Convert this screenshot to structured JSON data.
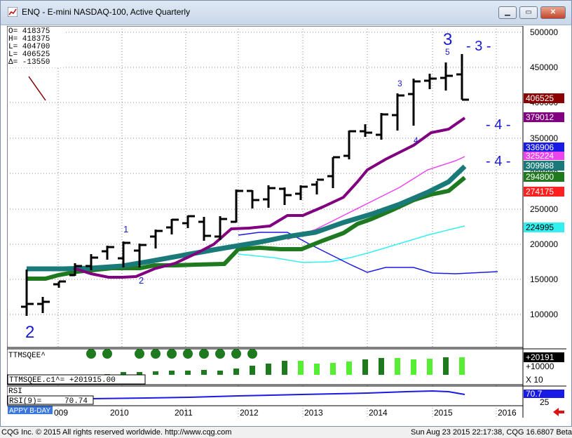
{
  "window": {
    "title": "ENQ - E-mini NASDAQ-100, Active Quarterly",
    "controls": {
      "minimize": "▁",
      "maximize": "▭",
      "close": "✕"
    }
  },
  "ohlc_box": {
    "lines": [
      "O=  418375",
      "H=  418375",
      "L=  404700",
      "L=  406525",
      "Δ=  -13550"
    ]
  },
  "price_axis": {
    "ticks": [
      "500000",
      "450000",
      "400000",
      "350000",
      "300000",
      "250000",
      "200000",
      "150000",
      "100000"
    ]
  },
  "price_labels": [
    {
      "text": "406525",
      "color": "#8b0000"
    },
    {
      "text": "379012",
      "color": "#800080"
    },
    {
      "text": "336906",
      "color": "#1a1ae6"
    },
    {
      "text": "325224",
      "color": "#ee44ee"
    },
    {
      "text": "309988",
      "color": "#1a7a7a"
    },
    {
      "text": "294800",
      "color": "#1f7a1f"
    },
    {
      "text": "274175",
      "color": "#ff2020"
    },
    {
      "text": "224995",
      "color": "#33f0f0"
    }
  ],
  "wave_labels": {
    "large_2": "2",
    "large_3": "3",
    "small_5": "5",
    "small_3": "3",
    "small_4": "4",
    "small_1": "1",
    "small_2": "2",
    "right_3": "- 3 -",
    "right_4a": "- 4 -",
    "right_4b": "- 4 -"
  },
  "time_axis": {
    "labels": [
      "009",
      "2010",
      "2011",
      "2012",
      "2013",
      "2014",
      "2015",
      "2016"
    ]
  },
  "squeeze_panel": {
    "name": "TTMSQEE^",
    "readout": "TTMSQEE.c1^= +201915.00",
    "axis_value": "+20191",
    "axis_scale": "+10000",
    "x_label": "X 10"
  },
  "rsi_panel": {
    "name": "RSI",
    "readout_label": "RSI(9)=",
    "readout_value": "70.74",
    "axis_value": "70.7",
    "axis_low": "25",
    "badge": "APPY B-DAY"
  },
  "status_bar": {
    "left": "CQG Inc. © 2015 All rights reserved worldwide. http://www.cqg.com",
    "right": "Sun Aug 23 2015 22:17:38, CQG 16.6807 Beta"
  },
  "colors": {
    "price_bars": "#000000",
    "ma_purple": "#800080",
    "ma_magenta": "#ee44ee",
    "ma_teal": "#1a7a7a",
    "ma_green": "#1f7a1f",
    "ma_cyan": "#33f0f0",
    "ma_blue": "#1a1ae6",
    "wave_labels": "#1a1ad0"
  }
}
